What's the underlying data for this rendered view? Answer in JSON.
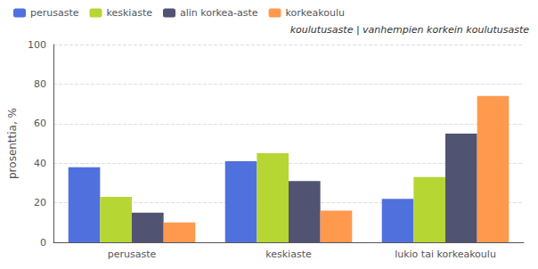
{
  "chart_data": {
    "type": "bar",
    "categories": [
      "perusaste",
      "keskiaste",
      "lukio tai korkeakoulu"
    ],
    "series": [
      {
        "name": "perusaste",
        "values": [
          38,
          41,
          22
        ]
      },
      {
        "name": "keskiaste",
        "values": [
          23,
          45,
          33
        ]
      },
      {
        "name": "alin korkea-aste",
        "values": [
          15,
          31,
          55
        ]
      },
      {
        "name": "korkeakoulu",
        "values": [
          10,
          16,
          74
        ]
      }
    ],
    "ylabel": "prosenttia, %",
    "annotation": "koulutusaste | vanhempien korkein koulutusaste",
    "ylim": [
      0,
      100
    ],
    "yticks": [
      0,
      20,
      40,
      60,
      80,
      100
    ],
    "grid": true,
    "legend": "upper left"
  }
}
